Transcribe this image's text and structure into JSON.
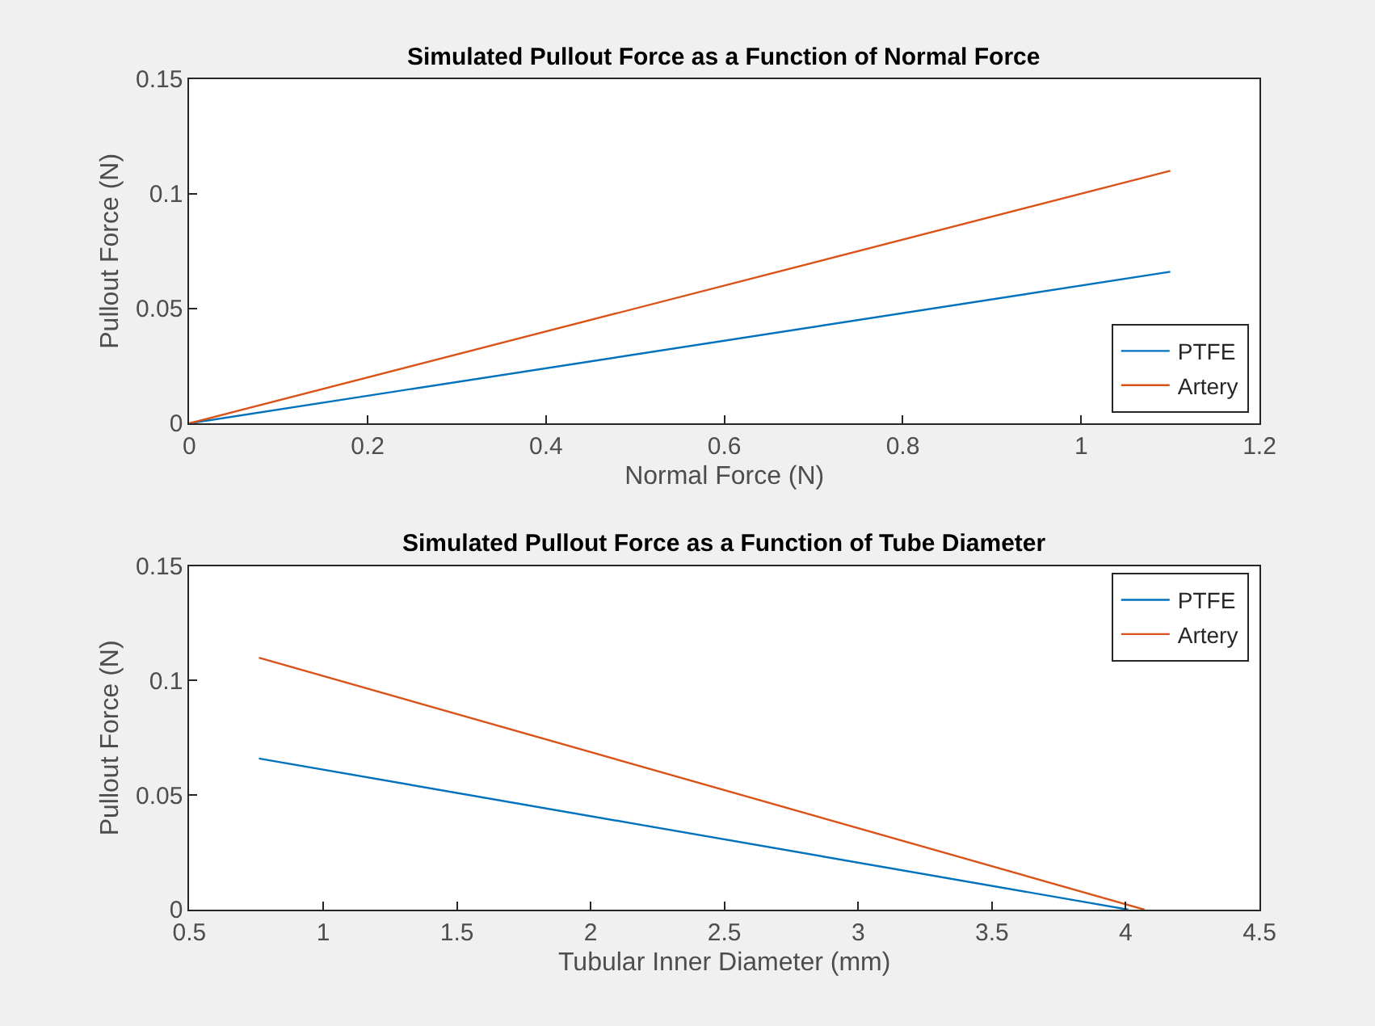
{
  "chart_data": [
    {
      "type": "line",
      "title": "Simulated Pullout Force as a Function of Normal Force",
      "xlabel": "Normal Force (N)",
      "ylabel": "Pullout Force (N)",
      "xlim": [
        0,
        1.2
      ],
      "xticks": [
        0,
        0.2,
        0.4,
        0.6,
        0.8,
        1,
        1.2
      ],
      "ylim": [
        0,
        0.15
      ],
      "yticks": [
        0,
        0.05,
        0.1,
        0.15
      ],
      "legend": "bottom right",
      "series": [
        {
          "name": "PTFE",
          "color": "#0072bd",
          "x": [
            0,
            1.1
          ],
          "values": [
            0,
            0.066
          ]
        },
        {
          "name": "Artery",
          "color": "#d95319",
          "x": [
            0,
            1.1
          ],
          "values": [
            0,
            0.11
          ]
        }
      ]
    },
    {
      "type": "line",
      "title": "Simulated Pullout Force as a Function of Tube Diameter",
      "xlabel": "Tubular Inner Diameter (mm)",
      "ylabel": "Pullout Force (N)",
      "xlim": [
        0.5,
        4.5
      ],
      "xticks": [
        0.5,
        1,
        1.5,
        2,
        2.5,
        3,
        3.5,
        4,
        4.5
      ],
      "ylim": [
        0,
        0.15
      ],
      "yticks": [
        0,
        0.05,
        0.1,
        0.15
      ],
      "legend": "top right",
      "series": [
        {
          "name": "PTFE",
          "color": "#0072bd",
          "x": [
            0.76,
            4.01
          ],
          "values": [
            0.066,
            0
          ]
        },
        {
          "name": "Artery",
          "color": "#d95319",
          "x": [
            0.76,
            4.07
          ],
          "values": [
            0.11,
            0
          ]
        }
      ]
    }
  ]
}
